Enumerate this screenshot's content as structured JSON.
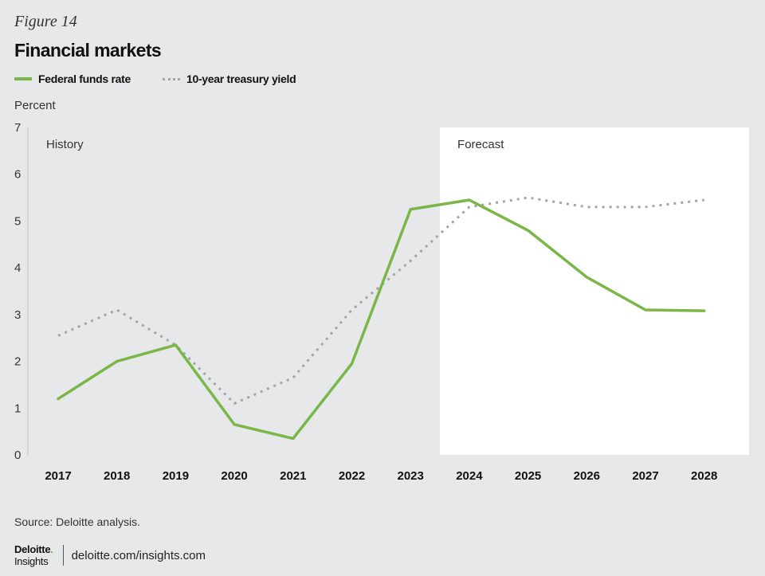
{
  "figure_label": "Figure 14",
  "title": "Financial markets",
  "source": "Source: Deloitte analysis.",
  "footer": {
    "logo_name": "Deloitte",
    "logo_sub": "Insights",
    "link": "deloitte.com/insights.com"
  },
  "chart_data": {
    "type": "line",
    "title": "Financial markets",
    "ylabel": "Percent",
    "xlabel": "",
    "ylim": [
      0,
      7
    ],
    "yticks": [
      0,
      1,
      2,
      3,
      4,
      5,
      6,
      7
    ],
    "x": [
      "2017",
      "2018",
      "2019",
      "2020",
      "2021",
      "2022",
      "2023",
      "2024",
      "2025",
      "2026",
      "2027",
      "2028"
    ],
    "regions": [
      {
        "label": "History",
        "from": "2017",
        "to": "2023",
        "background": "#e7e8e9"
      },
      {
        "label": "Forecast",
        "from": "2024",
        "to": "2028",
        "background": "#ffffff"
      }
    ],
    "series": [
      {
        "name": "Federal funds rate",
        "style": "solid",
        "color": "#7ab648",
        "values": [
          1.2,
          2.0,
          2.35,
          0.65,
          0.35,
          1.95,
          5.25,
          5.45,
          4.8,
          3.8,
          3.1,
          3.08
        ]
      },
      {
        "name": "10-year treasury yield",
        "style": "dotted",
        "color": "#a3a5a7",
        "values": [
          2.55,
          3.1,
          2.35,
          1.1,
          1.65,
          3.1,
          4.15,
          5.3,
          5.5,
          5.3,
          5.3,
          5.45
        ]
      }
    ],
    "legend_position": "top-left",
    "grid": false
  }
}
